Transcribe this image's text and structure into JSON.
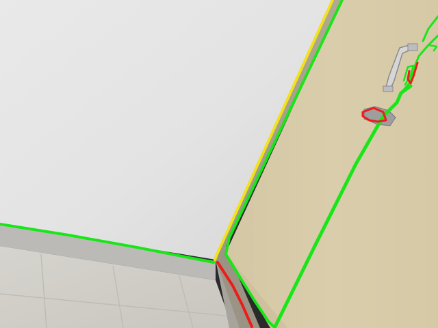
{
  "scene": {
    "description_hidden": "",
    "colors": {
      "wall": "#e6e6e6",
      "wall_shadow": "#d4d4d4",
      "floor": "#d2d0ca",
      "floor_tile_line": "#bdbab3",
      "skirting": "#b9b8b4",
      "door": "#d9ccaa",
      "door_shade": "#cbbd98",
      "door_edge": "#a29a88",
      "door_edge_dark": "#7f7a6e",
      "handle": "#d8d8d8",
      "handle_shadow": "#8f8f8f",
      "boundary_green": "#19e619",
      "boundary_red": "#ee1b1b",
      "boundary_yellow": "#f2e21a"
    },
    "overlay_labels": [
      "green-boundary",
      "red-boundary",
      "yellow-boundary"
    ]
  }
}
